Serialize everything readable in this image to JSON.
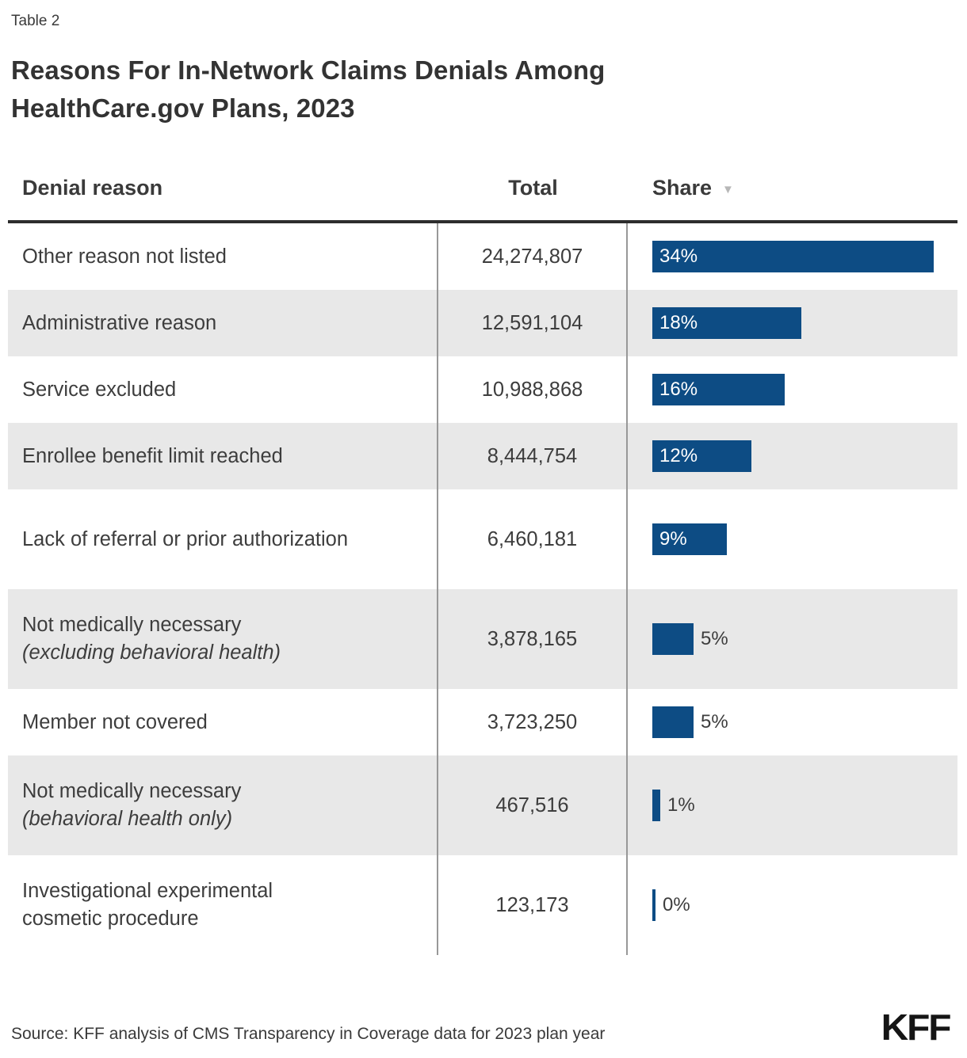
{
  "header": {
    "table_label": "Table 2",
    "title": "Reasons For In-Network Claims Denials Among HealthCare.gov Plans, 2023"
  },
  "columns": {
    "reason": "Denial reason",
    "total": "Total",
    "share": "Share",
    "sort_icon": "▼"
  },
  "colors": {
    "bar_blue": "#0D4C84",
    "row_alt_grey": "#E8E8E8",
    "divider_grey": "#989898",
    "rule_dark": "#2D2D2D"
  },
  "footer": {
    "source": "Source: KFF analysis of CMS Transparency in Coverage data for 2023 plan year",
    "logo": "KFF"
  },
  "chart_data": {
    "type": "table",
    "title": "Reasons For In-Network Claims Denials Among HealthCare.gov Plans, 2023",
    "columns": [
      "Denial reason",
      "Total",
      "Share"
    ],
    "sort": "Share descending",
    "share_axis_max_pct": 34,
    "rows": [
      {
        "reason": "Other reason not listed",
        "note": "",
        "total": "24,274,807",
        "share_pct": 34,
        "share_label": "34%"
      },
      {
        "reason": "Administrative reason",
        "note": "",
        "total": "12,591,104",
        "share_pct": 18,
        "share_label": "18%"
      },
      {
        "reason": "Service excluded",
        "note": "",
        "total": "10,988,868",
        "share_pct": 16,
        "share_label": "16%"
      },
      {
        "reason": "Enrollee benefit limit reached",
        "note": "",
        "total": "8,444,754",
        "share_pct": 12,
        "share_label": "12%"
      },
      {
        "reason": "Lack of referral or prior authorization",
        "note": "",
        "total": "6,460,181",
        "share_pct": 9,
        "share_label": "9%"
      },
      {
        "reason": "Not medically necessary",
        "note": "(excluding behavioral health)",
        "total": "3,878,165",
        "share_pct": 5,
        "share_label": "5%"
      },
      {
        "reason": "Member not covered",
        "note": "",
        "total": "3,723,250",
        "share_pct": 5,
        "share_label": "5%"
      },
      {
        "reason": "Not medically necessary",
        "note": "(behavioral health only)",
        "total": "467,516",
        "share_pct": 1,
        "share_label": "1%"
      },
      {
        "reason": "Investigational experimental cosmetic procedure",
        "note": "",
        "total": "123,173",
        "share_pct": 0,
        "share_label": "0%"
      }
    ]
  }
}
